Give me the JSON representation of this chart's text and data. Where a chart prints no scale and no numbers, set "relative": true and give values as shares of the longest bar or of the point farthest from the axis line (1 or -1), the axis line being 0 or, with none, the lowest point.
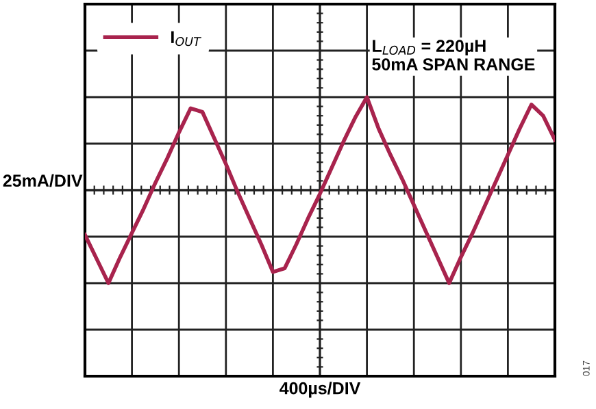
{
  "chart_data": {
    "type": "line",
    "relative": true,
    "ylabel": "25mA/DIV",
    "categories": [
      null,
      null,
      null,
      null,
      null,
      null,
      null,
      null,
      null,
      null,
      null,
      null,
      null,
      null,
      null,
      null,
      null,
      null,
      null,
      null,
      null,
      null,
      null,
      null,
      null,
      null,
      null,
      null,
      null,
      null,
      null,
      null,
      null,
      null,
      null,
      null,
      null,
      null,
      null,
      null,
      null
    ],
    "series": [
      {
        "name": "I$_{OUT}$",
        "color": "#a8234d",
        "values": [
          0.26,
          0.13,
          0.0,
          0.14,
          0.27,
          0.4,
          0.54,
          0.67,
          0.81,
          0.94,
          0.92,
          0.78,
          0.64,
          0.49,
          0.35,
          0.21,
          0.06,
          0.08,
          0.21,
          0.35,
          0.48,
          0.62,
          0.76,
          0.89,
          1.0,
          0.83,
          0.69,
          0.56,
          0.42,
          0.28,
          0.14,
          0.0,
          0.14,
          0.27,
          0.41,
          0.55,
          0.69,
          0.83,
          0.96,
          0.9,
          0.77
        ]
      }
    ],
    "annotations": [
      "L$_{LOAD}$ = 220µH\n50mA SPAN RANGE",
      "017",
      "400µs/DIV"
    ],
    "grid": true,
    "legend": "top left",
    "tick_labels": false,
    "marker": "none",
    "line_style": "solid"
  }
}
